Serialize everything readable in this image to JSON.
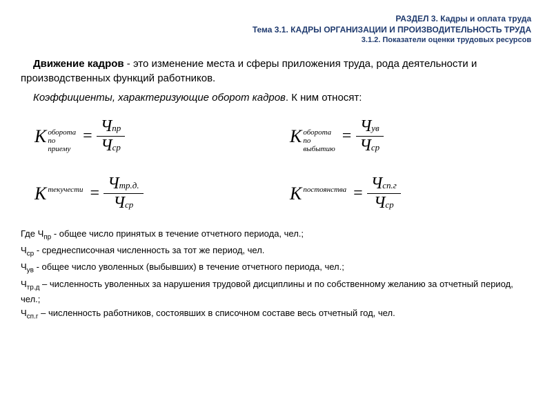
{
  "header": {
    "line1": "РАЗДЕЛ 3. Кадры и оплата труда",
    "line2": "Тема 3.1. КАДРЫ  ОРГАНИЗАЦИИ И ПРОИЗВОДИТЕЛЬНОСТЬ  ТРУДА",
    "line3": "3.1.2. Показатели оценки трудовых ресурсов"
  },
  "p1_bold": "Движение кадров",
  "p1_rest": " - это изменение места и сферы приложения труда, рода деятельности и производственных функций работников.",
  "p2_ital": "Коэффициенты, характеризующие оборот кадров",
  "p2_rest": ". К ним относят:",
  "formulas": {
    "f1": {
      "K": "K",
      "sub1": "оборота",
      "sub2": "по",
      "sub3": "приему",
      "num_main": "Ч",
      "num_sub": "пр",
      "den_main": "Ч",
      "den_sub": "ср"
    },
    "f2": {
      "K": "K",
      "sub1": "оборота",
      "sub2": "по",
      "sub3": "выбытию",
      "num_main": "Ч",
      "num_sub": "ув",
      "den_main": "Ч",
      "den_sub": "ср"
    },
    "f3": {
      "K": "K",
      "sub1": "текучести",
      "num_main": "Ч",
      "num_sub": "тр.д.",
      "den_main": "Ч",
      "den_sub": "ср"
    },
    "f4": {
      "K": "K",
      "sub1": "постоянства",
      "num_main": "Ч",
      "num_sub": "сп.г",
      "den_main": "Ч",
      "den_sub": "ср"
    }
  },
  "legend": {
    "l1a": "Где Ч",
    "l1sub": "пр",
    "l1b": " - общее число принятых в течение отчетного периода, чел.;",
    "l2a": "Ч",
    "l2sub": "ср",
    "l2b": " - среднесписочная численность за тот же период, чел.",
    "l3a": "Ч",
    "l3sub": "ув",
    "l3b": " - общее число уволенных (выбывших) в течение отчетного периода, чел.;",
    "l4a": "Ч",
    "l4sub": "тр.д",
    "l4b": " – численность уволенных за нарушения трудовой дисциплины и по собственному желанию за отчетный период, чел.;",
    "l5a": "Ч",
    "l5sub": "сп.г",
    "l5b": " – численность работников, состоявших в списочном составе весь отчетный год, чел."
  },
  "colors": {
    "header": "#1f3a6e",
    "text": "#000000",
    "background": "#ffffff"
  }
}
